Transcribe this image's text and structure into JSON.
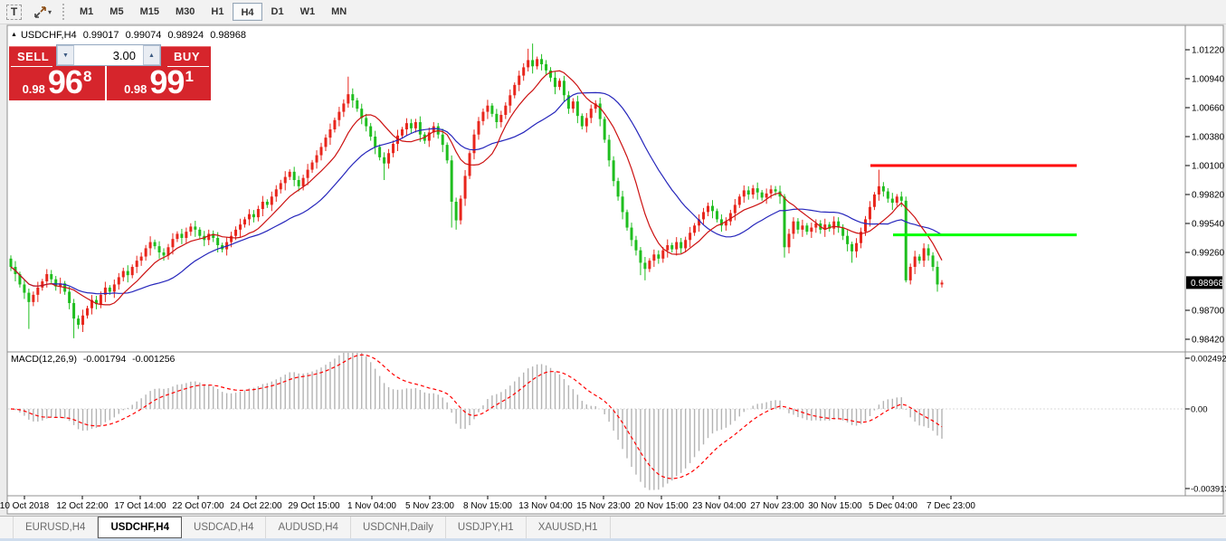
{
  "toolbar": {
    "text_tool_glyph": "T",
    "caret_glyph": "▾",
    "timeframes": [
      "M1",
      "M5",
      "M15",
      "M30",
      "H1",
      "H4",
      "D1",
      "W1",
      "MN"
    ],
    "active_timeframe": "H4"
  },
  "header": {
    "symbol_period": "USDCHF,H4",
    "open": "0.99017",
    "high": "0.99074",
    "low": "0.98924",
    "close": "0.98968"
  },
  "trade_panel": {
    "sell_label": "SELL",
    "buy_label": "BUY",
    "volume": "3.00",
    "sell_price_prefix": "0.98",
    "sell_price_big": "96",
    "sell_price_sup": "8",
    "buy_price_prefix": "0.98",
    "buy_price_big": "99",
    "buy_price_sup": "1"
  },
  "icons": {
    "header_marker": "▲",
    "spin_up": "▲",
    "spin_down": "▼"
  },
  "macd_label": {
    "name": "MACD(12,26,9)",
    "macd_value": "-0.001794",
    "signal_value": "-0.001256"
  },
  "price_axis": {
    "ticks": [
      "1.01220",
      "1.00940",
      "1.00660",
      "1.00380",
      "1.00100",
      "0.99820",
      "0.99540",
      "0.99260",
      "0.98700",
      "0.98420"
    ],
    "current": "0.98968"
  },
  "macd_axis": {
    "ticks": [
      "0.002492",
      "0.00",
      "-0.003913"
    ]
  },
  "time_axis": {
    "labels": [
      "10 Oct 2018",
      "12 Oct 22:00",
      "17 Oct 14:00",
      "22 Oct 07:00",
      "24 Oct 22:00",
      "29 Oct 15:00",
      "1 Nov 04:00",
      "5 Nov 23:00",
      "8 Nov 15:00",
      "13 Nov 04:00",
      "15 Nov 23:00",
      "20 Nov 15:00",
      "23 Nov 04:00",
      "27 Nov 23:00",
      "30 Nov 15:00",
      "5 Dec 04:00",
      "7 Dec 23:00"
    ]
  },
  "tabs": {
    "items": [
      "EURUSD,H4",
      "USDCHF,H4",
      "USDCAD,H4",
      "AUDUSD,H4",
      "USDCNH,Daily",
      "USDJPY,H1",
      "XAUUSD,H1"
    ],
    "active": "USDCHF,H4"
  },
  "colors": {
    "bull_candle": "#e8261c",
    "bear_candle": "#1fbe1f",
    "ma_fast": "#cc1111",
    "ma_slow": "#2525bb",
    "macd_histogram": "#b3b3b3",
    "macd_signal": "#ff0000",
    "resistance_line": "#ff0000",
    "support_line": "#00ff00",
    "price_marker_bg": "#000000",
    "price_marker_text": "#ffffff",
    "panel_red": "#d6252c"
  },
  "chart_data": {
    "type": "candlestick",
    "symbol": "USDCHF",
    "period": "H4",
    "title": "USDCHF,H4 0.99017 0.99074 0.98924 0.98968",
    "current_price": 0.98968,
    "ylim": [
      0.9842,
      1.0122
    ],
    "grid": false,
    "first_open": 0.992,
    "closes": [
      0.9912,
      0.9905,
      0.9895,
      0.9887,
      0.9878,
      0.9885,
      0.9892,
      0.9898,
      0.9905,
      0.99,
      0.9893,
      0.9896,
      0.9888,
      0.9877,
      0.9862,
      0.9856,
      0.9865,
      0.9872,
      0.988,
      0.9876,
      0.9885,
      0.9892,
      0.9888,
      0.9895,
      0.9902,
      0.9908,
      0.9904,
      0.9912,
      0.9918,
      0.9922,
      0.993,
      0.9936,
      0.9932,
      0.9926,
      0.9923,
      0.9931,
      0.9939,
      0.9944,
      0.994,
      0.9946,
      0.9951,
      0.9948,
      0.9942,
      0.9938,
      0.9944,
      0.994,
      0.9933,
      0.9929,
      0.9936,
      0.9942,
      0.9948,
      0.9953,
      0.9958,
      0.9963,
      0.996,
      0.9968,
      0.9975,
      0.9972,
      0.998,
      0.9987,
      0.9993,
      0.9999,
      1.0004,
      0.9996,
      0.999,
      0.9998,
      1.0006,
      1.0013,
      1.002,
      1.0028,
      1.0037,
      1.0045,
      1.0054,
      1.0062,
      1.007,
      1.0079,
      1.0073,
      1.0065,
      1.0056,
      1.0048,
      1.0038,
      1.0028,
      1.0018,
      1.0012,
      1.0022,
      1.0031,
      1.0039,
      1.0045,
      1.0051,
      1.0046,
      1.0052,
      1.004,
      1.0034,
      1.0042,
      1.0048,
      1.004,
      1.003,
      1.0015,
      0.9975,
      0.9957,
      0.9978,
      1.0,
      1.0022,
      1.004,
      1.0053,
      1.0062,
      1.0068,
      1.006,
      1.0052,
      1.0059,
      1.0068,
      1.0078,
      1.0088,
      1.0097,
      1.0105,
      1.0112,
      1.0106,
      1.0113,
      1.0108,
      1.0102,
      1.0095,
      1.0086,
      1.0092,
      1.0078,
      1.0065,
      1.0072,
      1.0058,
      1.0048,
      1.0056,
      1.0065,
      1.007,
      1.0055,
      1.0035,
      1.0015,
      0.9995,
      0.998,
      0.9965,
      0.995,
      0.9938,
      0.9928,
      0.9916,
      0.991,
      0.9918,
      0.9924,
      0.992,
      0.9928,
      0.9933,
      0.9929,
      0.9936,
      0.993,
      0.9938,
      0.9945,
      0.9952,
      0.9958,
      0.9965,
      0.9971,
      0.9966,
      0.9958,
      0.9952,
      0.9956,
      0.9964,
      0.9972,
      0.998,
      0.9986,
      0.9982,
      0.9988,
      0.9984,
      0.9979,
      0.9983,
      0.9987,
      0.9985,
      0.998,
      0.9931,
      0.9944,
      0.9956,
      0.9948,
      0.9952,
      0.9946,
      0.995,
      0.9954,
      0.9948,
      0.9953,
      0.9949,
      0.9956,
      0.995,
      0.9942,
      0.9934,
      0.9927,
      0.9935,
      0.9946,
      0.9958,
      0.997,
      0.9982,
      0.999,
      0.9985,
      0.9978,
      0.9974,
      0.998,
      0.9976,
      0.9899,
      0.9912,
      0.9922,
      0.9918,
      0.993,
      0.9923,
      0.9912,
      0.9895,
      0.98968
    ],
    "wick_cycle": [
      0.0004,
      0.0007,
      0.0003,
      0.0006,
      0.0005
    ],
    "wick_overrides": {
      "4": {
        "l": 0.9852
      },
      "14": {
        "l": 0.9843
      },
      "75": {
        "h": 1.0096
      },
      "83": {
        "l": 0.9996
      },
      "98": {
        "l": 0.995
      },
      "99": {
        "l": 0.9948
      },
      "115": {
        "h": 1.0123
      },
      "116": {
        "h": 1.0128
      },
      "140": {
        "l": 0.9904
      },
      "141": {
        "l": 0.9899
      },
      "172": {
        "l": 0.9921
      },
      "187": {
        "l": 0.9916
      },
      "193": {
        "h": 1.0006
      },
      "199": {
        "l": 0.9897
      },
      "206": {
        "l": 0.9888
      }
    },
    "ma_fast_period": 10,
    "ma_slow_period": 24,
    "macd_params": [
      12,
      26,
      9
    ],
    "macd_last": -0.001794,
    "macd_signal_last": -0.001256,
    "hlines": [
      {
        "name": "resistance-line",
        "price": 1.001,
        "color": "#ff0000"
      },
      {
        "name": "support-line",
        "price": 0.9943,
        "color": "#00ff00"
      }
    ]
  }
}
